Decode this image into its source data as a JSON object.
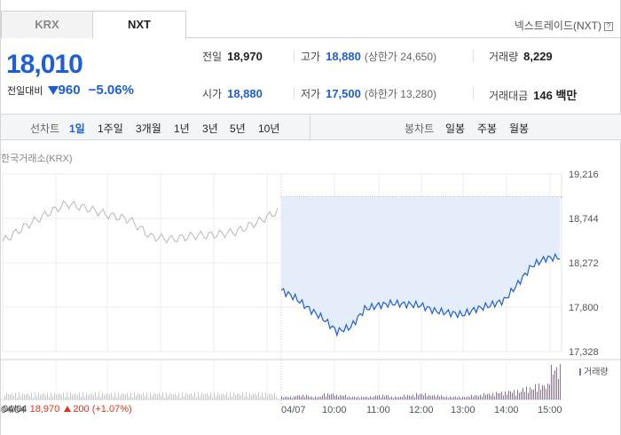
{
  "tabs": [
    {
      "label": "KRX",
      "active": false
    },
    {
      "label": "NXT",
      "active": true
    }
  ],
  "market_label": "넥스트레이드(NXT)",
  "help_glyph": "?",
  "quote": {
    "price": "18,010",
    "change_label": "전일대비",
    "change_amount": "960",
    "change_pct": "−5.06%",
    "direction": "down"
  },
  "stats": {
    "prev_close": {
      "label": "전일",
      "value": "18,970"
    },
    "open": {
      "label": "시가",
      "value": "18,880"
    },
    "high": {
      "label": "고가",
      "value": "18,880",
      "sub": "(상한가 24,650)"
    },
    "low": {
      "label": "저가",
      "value": "17,500",
      "sub": "(하한가 13,280)"
    },
    "volume": {
      "label": "거래량",
      "value": "8,229"
    },
    "trade_value": {
      "label": "거래대금",
      "value": "146 백만"
    }
  },
  "period_bar": {
    "line_chart_label": "선차트",
    "line_periods": [
      "1일",
      "1주일",
      "3개월",
      "1년",
      "3년",
      "5년",
      "10년"
    ],
    "active_period": "1일",
    "candle_chart_label": "봉차트",
    "candle_periods": [
      "일봉",
      "주봉",
      "월봉"
    ]
  },
  "chart_title": "한국거래소(KRX)",
  "colors": {
    "down_blue": "#1d5fd6",
    "up_red": "#e2341d",
    "area_fill": "#e4edf9",
    "prev_line": "#b8b8b8",
    "volume_bar": "#8a6fb8"
  },
  "volume_legend": "거래량",
  "footer": {
    "prev_date": "04/04",
    "prev_close": "18,970",
    "prev_change": "200 (+1.07%)"
  },
  "chart_data": {
    "type": "line",
    "y_ticks": [
      19216,
      18744,
      18272,
      17800,
      17328
    ],
    "y_tick_labels": [
      "19,216",
      "18,744",
      "18,272",
      "17,800",
      "17,328"
    ],
    "ylim": [
      17328,
      19216
    ],
    "x_tick_labels": [
      "04/04",
      "04/07",
      "10:00",
      "11:00",
      "12:00",
      "13:00",
      "14:00",
      "15:00"
    ],
    "prev_close_reference": 18970,
    "series": [
      {
        "x": [
          "04/04 09:00",
          "04/04 09:30",
          "04/04 10:00",
          "04/04 10:30",
          "04/04 11:00",
          "04/04 11:30",
          "04/04 12:00",
          "04/04 12:30",
          "04/04 13:00",
          "04/04 13:30",
          "04/04 14:00",
          "04/04 14:30",
          "04/04 15:00",
          "04/04 15:30"
        ],
        "values": [
          18500,
          18650,
          18780,
          18900,
          18850,
          18780,
          18730,
          18550,
          18520,
          18560,
          18570,
          18600,
          18700,
          18820
        ]
      },
      {
        "x": [
          "09:00",
          "09:10",
          "09:20",
          "09:30",
          "09:45",
          "10:00",
          "10:15",
          "10:30",
          "11:00",
          "11:30",
          "12:00",
          "12:30",
          "13:00",
          "13:15",
          "13:30",
          "14:00",
          "14:20",
          "14:40",
          "14:50",
          "15:00",
          "15:20"
        ],
        "values": [
          17980,
          17900,
          17780,
          17680,
          17540,
          17590,
          17780,
          17820,
          17840,
          17830,
          17820,
          17760,
          17740,
          17720,
          17780,
          17820,
          17870,
          18050,
          18240,
          18320,
          18330
        ]
      }
    ],
    "volume": [
      2,
      3,
      2,
      4,
      3,
      2,
      2,
      3,
      2,
      3,
      4,
      3,
      2,
      2,
      3,
      4,
      5,
      6,
      8,
      10,
      22
    ]
  }
}
